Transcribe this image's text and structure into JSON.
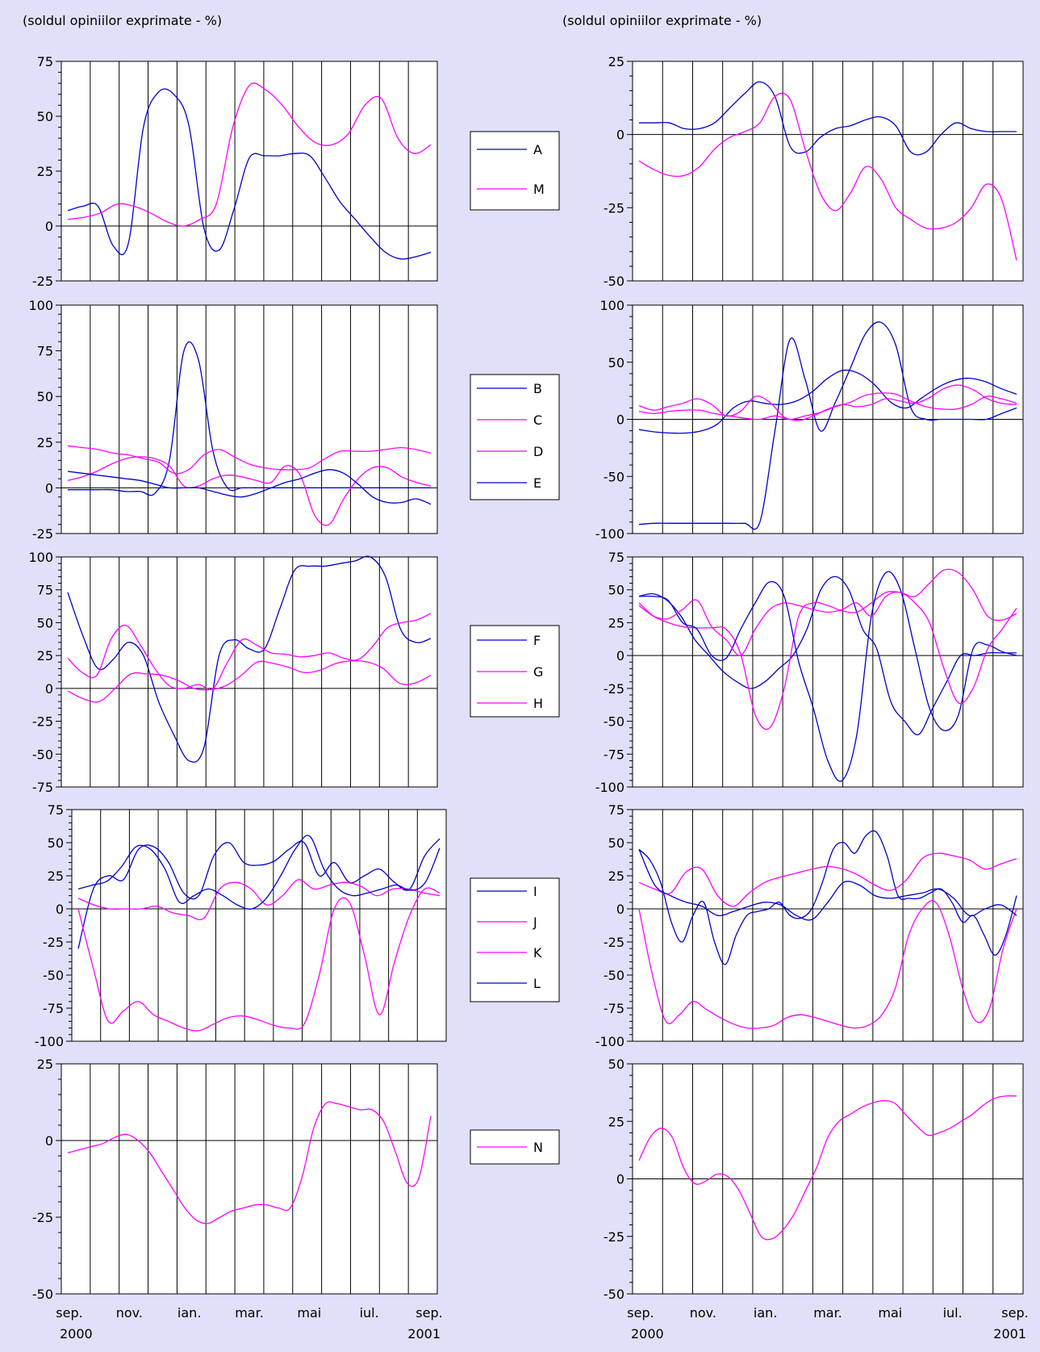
{
  "colors": {
    "background": "#e0e0f8",
    "blue": "#0000cc",
    "magenta": "#ff00ff"
  },
  "left_unit_label": "(soldul opiniilor exprimate - %)",
  "right_unit_label": "(soldul opiniilor exprimate - %)",
  "x_tick_labels": [
    "sep.",
    "nov.",
    "ian.",
    "mar.",
    "mai",
    "iul.",
    "sep."
  ],
  "x_year_start": "2000",
  "x_year_end": "2001",
  "chart_data": [
    {
      "type": "line",
      "ylim": [
        -25,
        75
      ],
      "yticks": [
        75,
        50,
        25,
        0,
        -25
      ],
      "minor": 5,
      "series": [
        {
          "name": "A",
          "color": "blue",
          "values": [
            7,
            9,
            9,
            -9,
            -8,
            45,
            61,
            60,
            46,
            -1,
            -11,
            8,
            31,
            32,
            32,
            33,
            32,
            22,
            11,
            3,
            -5,
            -12,
            -15,
            -14,
            -12
          ]
        },
        {
          "name": "M",
          "color": "magenta",
          "values": [
            3,
            4,
            6,
            10,
            9,
            6,
            2,
            0,
            3,
            10,
            45,
            64,
            62,
            55,
            45,
            38,
            37,
            42,
            55,
            58,
            40,
            33,
            37
          ]
        }
      ]
    },
    {
      "type": "line",
      "ylim": [
        -50,
        25
      ],
      "yticks": [
        25,
        0,
        -25,
        -50
      ],
      "minor": 5,
      "series": [
        {
          "name": "",
          "color": "blue",
          "values": [
            4,
            4,
            4,
            2,
            2,
            4,
            9,
            14,
            18,
            13,
            -4,
            -6,
            -1,
            2,
            3,
            5,
            6,
            3,
            -6,
            -6,
            0,
            4,
            2,
            1,
            1,
            1
          ]
        },
        {
          "name": "",
          "color": "magenta",
          "values": [
            -9,
            -12,
            -14,
            -14,
            -11,
            -5,
            -1,
            1,
            4,
            13,
            12,
            -5,
            -20,
            -26,
            -20,
            -11,
            -15,
            -25,
            -29,
            -32,
            -32,
            -30,
            -25,
            -17,
            -22,
            -43
          ]
        }
      ]
    },
    {
      "type": "line",
      "ylim": [
        -25,
        100
      ],
      "yticks": [
        100,
        75,
        50,
        25,
        0,
        -25
      ],
      "minor": 5,
      "series": [
        {
          "name": "B",
          "color": "blue",
          "values": [
            -1,
            -1,
            -1,
            -1,
            -2,
            -2,
            -3,
            15,
            75,
            70,
            20,
            0,
            0,
            0,
            0,
            0,
            0,
            0,
            0,
            0,
            0,
            0,
            0,
            0,
            0,
            0
          ]
        },
        {
          "name": "C",
          "color": "magenta",
          "values": [
            23,
            22,
            21,
            19,
            18,
            16,
            14,
            8,
            10,
            18,
            21,
            17,
            13,
            11,
            10,
            10,
            11,
            16,
            20,
            20,
            20,
            21,
            22,
            21,
            19
          ]
        },
        {
          "name": "D",
          "color": "magenta",
          "values": [
            4,
            6,
            9,
            13,
            16,
            17,
            16,
            12,
            1,
            1,
            5,
            7,
            6,
            4,
            3,
            12,
            7,
            -15,
            -20,
            -6,
            5,
            11,
            11,
            6,
            3,
            1
          ]
        },
        {
          "name": "E",
          "color": "blue",
          "values": [
            9,
            8,
            7,
            6,
            5,
            4,
            2,
            0,
            0,
            0,
            -2,
            -4,
            -5,
            -3,
            0,
            3,
            5,
            8,
            10,
            8,
            2,
            -5,
            -8,
            -8,
            -6,
            -9
          ]
        }
      ]
    },
    {
      "type": "line",
      "ylim": [
        -100,
        100
      ],
      "yticks": [
        100,
        50,
        0,
        -50,
        -100
      ],
      "minor": 5,
      "series": [
        {
          "name": "",
          "color": "blue",
          "values": [
            -92,
            -91,
            -91,
            -91,
            -91,
            -91,
            -91,
            -91,
            -90,
            -10,
            70,
            35,
            -10,
            15,
            45,
            75,
            85,
            65,
            10,
            0,
            0,
            0,
            0,
            0,
            5,
            10
          ]
        },
        {
          "name": "",
          "color": "blue",
          "values": [
            -9,
            -11,
            -12,
            -12,
            -10,
            -4,
            10,
            16,
            14,
            13,
            16,
            24,
            36,
            43,
            40,
            30,
            15,
            10,
            19,
            28,
            34,
            36,
            33,
            27,
            22
          ]
        },
        {
          "name": "",
          "color": "magenta",
          "values": [
            12,
            8,
            11,
            14,
            18,
            13,
            3,
            7,
            20,
            15,
            2,
            -1,
            3,
            9,
            13,
            11,
            13,
            18,
            16,
            14,
            19,
            27,
            30,
            26,
            18,
            14,
            13
          ]
        },
        {
          "name": "",
          "color": "magenta",
          "values": [
            7,
            5,
            7,
            8,
            8,
            5,
            3,
            1,
            0,
            3,
            0,
            3,
            6,
            11,
            15,
            21,
            23,
            22,
            16,
            11,
            9,
            9,
            13,
            20,
            18,
            14
          ]
        }
      ]
    },
    {
      "type": "line",
      "ylim": [
        -75,
        100
      ],
      "yticks": [
        100,
        75,
        50,
        25,
        0,
        -25,
        -50,
        -75
      ],
      "minor": 5,
      "series": [
        {
          "name": "F",
          "color": "blue",
          "values": [
            73,
            40,
            15,
            22,
            35,
            25,
            -10,
            -35,
            -55,
            -45,
            25,
            37,
            30,
            30,
            60,
            90,
            93,
            93,
            95,
            97,
            100,
            85,
            45,
            35,
            38
          ]
        },
        {
          "name": "G",
          "color": "magenta",
          "values": [
            23,
            12,
            10,
            38,
            48,
            33,
            15,
            2,
            0,
            3,
            0,
            20,
            37,
            33,
            27,
            26,
            24,
            25,
            27,
            23,
            22,
            32,
            46,
            50,
            52,
            57
          ]
        },
        {
          "name": "H",
          "color": "magenta",
          "values": [
            -2,
            -8,
            -10,
            0,
            11,
            11,
            10,
            6,
            0,
            -1,
            2,
            10,
            20,
            19,
            16,
            12,
            14,
            19,
            21,
            20,
            15,
            4,
            4,
            10
          ]
        }
      ]
    },
    {
      "type": "line",
      "ylim": [
        -100,
        75
      ],
      "yticks": [
        75,
        50,
        25,
        0,
        -25,
        -50,
        -75,
        -100
      ],
      "minor": 5,
      "series": [
        {
          "name": "",
          "color": "blue",
          "values": [
            45,
            47,
            42,
            30,
            12,
            0,
            -12,
            -20,
            -25,
            -20,
            -10,
            0,
            20,
            50,
            60,
            50,
            20,
            5,
            -35,
            -50,
            -60,
            -40,
            -20,
            0,
            0,
            2,
            2,
            2
          ]
        },
        {
          "name": "",
          "color": "magenta",
          "values": [
            40,
            30,
            25,
            22,
            21,
            21,
            20,
            1,
            -45,
            -55,
            -25,
            30,
            40,
            38,
            34,
            33,
            40,
            48,
            48,
            45,
            55,
            65,
            63,
            50,
            30,
            27,
            32
          ]
        },
        {
          "name": "",
          "color": "blue",
          "values": [
            45,
            45,
            42,
            25,
            20,
            0,
            -2,
            20,
            40,
            56,
            45,
            -5,
            -40,
            -80,
            -95,
            -60,
            30,
            63,
            50,
            5,
            -40,
            -57,
            -45,
            5,
            8,
            3,
            0
          ]
        },
        {
          "name": "",
          "color": "magenta",
          "values": [
            38,
            30,
            28,
            35,
            42,
            22,
            12,
            0,
            20,
            35,
            40,
            38,
            35,
            33,
            35,
            40,
            30,
            45,
            48,
            40,
            25,
            -10,
            -36,
            -25,
            5,
            20,
            36
          ]
        }
      ]
    },
    {
      "type": "line",
      "ylim": [
        -100,
        75
      ],
      "yticks": [
        75,
        50,
        25,
        0,
        -25,
        -50,
        -75,
        -100
      ],
      "minor": 5,
      "series": [
        {
          "name": "I",
          "color": "blue",
          "values": [
            -30,
            15,
            25,
            22,
            45,
            47,
            35,
            12,
            10,
            40,
            50,
            35,
            33,
            36,
            45,
            50,
            25,
            35,
            20,
            25,
            30,
            20,
            15,
            40,
            53
          ]
        },
        {
          "name": "J",
          "color": "magenta",
          "values": [
            0,
            -45,
            -85,
            -77,
            -70,
            -80,
            -85,
            -90,
            -92,
            -87,
            -82,
            -81,
            -84,
            -88,
            -90,
            -87,
            -50,
            0,
            5,
            -35,
            -80,
            -40,
            -5,
            15,
            12
          ]
        },
        {
          "name": "K",
          "color": "magenta",
          "values": [
            8,
            3,
            0,
            0,
            0,
            2,
            -3,
            -5,
            -7,
            15,
            20,
            15,
            3,
            10,
            22,
            15,
            18,
            20,
            17,
            10,
            15,
            15,
            12,
            10
          ]
        },
        {
          "name": "L",
          "color": "blue",
          "values": [
            15,
            18,
            21,
            32,
            47,
            45,
            30,
            5,
            10,
            15,
            10,
            3,
            0,
            8,
            25,
            45,
            55,
            30,
            15,
            10,
            12,
            15,
            18,
            14,
            20,
            46
          ]
        }
      ]
    },
    {
      "type": "line",
      "ylim": [
        -100,
        75
      ],
      "yticks": [
        75,
        50,
        25,
        0,
        -25,
        -50,
        -75,
        -100
      ],
      "minor": 5,
      "series": [
        {
          "name": "",
          "color": "blue",
          "values": [
            45,
            37,
            20,
            -10,
            -25,
            -5,
            5,
            -25,
            -42,
            -20,
            -5,
            -2,
            0,
            5,
            -5,
            -7,
            0,
            20,
            45,
            50,
            42,
            55,
            58,
            40,
            10,
            8,
            8,
            12,
            15,
            5,
            -10,
            -5,
            -20,
            -35,
            -20,
            10
          ]
        },
        {
          "name": "",
          "color": "magenta",
          "values": [
            0,
            -50,
            -85,
            -80,
            -70,
            -76,
            -82,
            -87,
            -90,
            -90,
            -88,
            -82,
            -80,
            -82,
            -85,
            -88,
            -90,
            -88,
            -80,
            -60,
            -20,
            0,
            5,
            -20,
            -60,
            -85,
            -75,
            -30,
            0
          ]
        },
        {
          "name": "",
          "color": "magenta",
          "values": [
            20,
            15,
            12,
            28,
            30,
            10,
            2,
            12,
            20,
            24,
            27,
            30,
            32,
            30,
            25,
            18,
            14,
            22,
            38,
            42,
            40,
            37,
            30,
            34,
            38
          ]
        },
        {
          "name": "",
          "color": "blue",
          "values": [
            45,
            18,
            10,
            5,
            2,
            -5,
            -2,
            2,
            5,
            3,
            -5,
            -8,
            5,
            20,
            18,
            10,
            8,
            10,
            12,
            15,
            8,
            -5,
            0,
            3,
            -5
          ]
        }
      ]
    },
    {
      "type": "line",
      "ylim": [
        -50,
        25
      ],
      "yticks": [
        25,
        0,
        -25,
        -50
      ],
      "minor": 5,
      "series": [
        {
          "name": "N",
          "color": "magenta",
          "values": [
            -4,
            -3,
            -2,
            -1,
            1,
            2,
            0,
            -4,
            -10,
            -16,
            -22,
            -26,
            -27,
            -25,
            -23,
            -22,
            -21,
            -21,
            -22,
            -22,
            -12,
            4,
            12,
            12,
            11,
            10,
            10,
            6,
            -4,
            -14,
            -12,
            8
          ]
        }
      ]
    },
    {
      "type": "line",
      "ylim": [
        -50,
        50
      ],
      "yticks": [
        50,
        25,
        0,
        -25,
        -50
      ],
      "minor": 5,
      "series": [
        {
          "name": "",
          "color": "magenta",
          "values": [
            8,
            18,
            22,
            18,
            5,
            -2,
            -1,
            2,
            1,
            -5,
            -15,
            -25,
            -26,
            -22,
            -15,
            -5,
            5,
            18,
            25,
            28,
            31,
            33,
            34,
            33,
            28,
            23,
            19,
            20,
            22,
            25,
            28,
            32,
            35,
            36,
            36
          ]
        }
      ]
    }
  ]
}
